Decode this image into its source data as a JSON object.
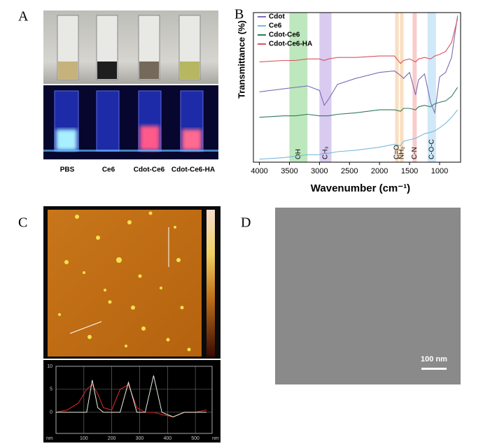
{
  "panels": [
    {
      "label": "A",
      "sample_labels": [
        "PBS",
        "Ce6",
        "Cdot-Ce6",
        "Cdot-Ce6-HA"
      ]
    },
    {
      "label": "B"
    },
    {
      "label": "C"
    },
    {
      "label": "D",
      "scale_bar": "100 nm"
    }
  ],
  "chart_data": [
    {
      "type": "line",
      "x_label": "Wavenumber (cm⁻¹)",
      "y_label": "Transmittance (%)",
      "xlim": [
        4100,
        650
      ],
      "xticks": [
        4000,
        3500,
        3000,
        2500,
        2000,
        1500,
        1000
      ],
      "ylim": [
        0,
        10
      ],
      "legend": "upper left",
      "x": [
        4000,
        3600,
        3400,
        3200,
        3000,
        2920,
        2850,
        2700,
        2400,
        2000,
        1750,
        1650,
        1600,
        1500,
        1400,
        1350,
        1250,
        1150,
        1080,
        1000,
        900,
        800,
        700
      ],
      "series": [
        {
          "name": "Cdot",
          "color": "#7b6db3",
          "values": [
            4.7,
            4.9,
            5.0,
            5.1,
            4.8,
            3.8,
            4.2,
            5.2,
            5.6,
            6.0,
            6.1,
            5.8,
            5.6,
            6.0,
            4.5,
            5.5,
            5.9,
            4.0,
            3.3,
            5.7,
            6.0,
            7.0,
            9.8
          ]
        },
        {
          "name": "Ce6",
          "color": "#7ab9da",
          "values": [
            0.2,
            0.3,
            0.4,
            0.5,
            0.5,
            0.6,
            0.6,
            0.7,
            0.8,
            1.0,
            1.2,
            1.1,
            1.4,
            1.5,
            1.6,
            1.7,
            1.9,
            2.0,
            2.1,
            2.3,
            2.6,
            3.0,
            3.5
          ]
        },
        {
          "name": "Cdot-Ce6",
          "color": "#2f7a5c",
          "values": [
            3.0,
            3.1,
            3.1,
            3.2,
            3.1,
            3.1,
            3.1,
            3.2,
            3.3,
            3.5,
            3.5,
            3.4,
            3.6,
            3.6,
            3.5,
            3.7,
            3.8,
            3.7,
            3.9,
            4.0,
            4.1,
            4.4,
            5.0
          ]
        },
        {
          "name": "Cdot-Ce6-HA",
          "color": "#d9535f",
          "values": [
            6.7,
            6.8,
            6.8,
            6.9,
            6.9,
            6.8,
            6.9,
            7.0,
            7.0,
            7.1,
            7.1,
            6.6,
            6.8,
            6.9,
            6.7,
            6.9,
            7.0,
            6.9,
            7.1,
            7.2,
            7.4,
            8.0,
            9.6
          ]
        }
      ],
      "annotations": [
        {
          "label": "OH",
          "x_range": [
            3500,
            3200
          ],
          "color": "#86d486"
        },
        {
          "label": "CH₃",
          "x_range": [
            3000,
            2800
          ],
          "color": "#b9a0e4"
        },
        {
          "label": "C=O",
          "x_range": [
            1740,
            1680
          ],
          "color": "#f6c48e"
        },
        {
          "label": "NH₂",
          "x_range": [
            1660,
            1600
          ],
          "color": "#f6c48e"
        },
        {
          "label": "C-N",
          "x_range": [
            1450,
            1380
          ],
          "color": "#f4a3a3"
        },
        {
          "label": "C-O-C",
          "x_range": [
            1200,
            1060
          ],
          "color": "#a9d6f0"
        }
      ]
    },
    {
      "type": "line",
      "x_label": "nm",
      "y_label": "nm",
      "xlim": [
        0,
        560
      ],
      "xticks": [
        100,
        200,
        300,
        400,
        500
      ],
      "ylim": [
        -4.6,
        10
      ],
      "yticks": [
        0,
        5,
        10
      ],
      "grid": true,
      "x": [
        0,
        40,
        80,
        110,
        130,
        150,
        170,
        200,
        230,
        260,
        290,
        320,
        350,
        380,
        420,
        460,
        500,
        540
      ],
      "series": [
        {
          "color": "#e02a2a",
          "values": [
            0,
            0.5,
            2,
            5,
            6,
            4,
            1,
            0.5,
            5,
            6,
            1,
            0,
            0,
            -0.5,
            -1,
            0,
            0,
            0.5
          ]
        },
        {
          "color": "#e8f4e4",
          "values": [
            0,
            0,
            0,
            0,
            7,
            1,
            0,
            0,
            0,
            6.5,
            0,
            0,
            8,
            0,
            -1,
            0,
            0,
            0
          ]
        }
      ]
    }
  ]
}
